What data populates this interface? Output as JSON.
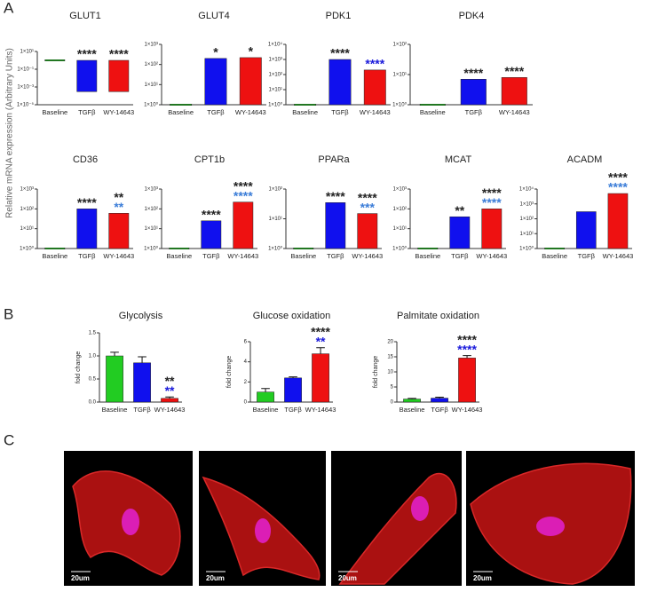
{
  "panel_labels": [
    "A",
    "B",
    "C"
  ],
  "shared_ylabel": "Relative mRNA expression (Arbitrary Units)",
  "chart_data": [
    {
      "type": "bar",
      "title": "GLUT1",
      "log_scale": true,
      "categories": [
        "Baseline",
        "TGFβ",
        "WY-14643"
      ],
      "values": [
        1,
        0.0003,
        0.0003
      ],
      "colors": [
        "#22cc22",
        "#1010ee",
        "#ee1111"
      ],
      "ylim": [
        1e-05,
        10
      ],
      "yticks": [
        {
          "value": 10,
          "label": "1×10¹"
        },
        {
          "value": 0.1,
          "label": "1×10⁻¹"
        },
        {
          "value": 0.001,
          "label": "1×10⁻³"
        },
        {
          "value": 1e-05,
          "label": "1×10⁻⁵"
        }
      ],
      "significance": [
        null,
        [
          {
            "text": "****",
            "color": "#222222"
          }
        ],
        [
          {
            "text": "****",
            "color": "#222222"
          }
        ]
      ]
    },
    {
      "type": "bar",
      "title": "GLUT4",
      "log_scale": true,
      "categories": [
        "Baseline",
        "TGFβ",
        "WY-14643"
      ],
      "values": [
        1,
        200,
        220
      ],
      "colors": [
        "#22cc22",
        "#1010ee",
        "#ee1111"
      ],
      "ylim": [
        1,
        1000
      ],
      "yticks": [
        {
          "value": 1,
          "label": "1×10⁰"
        },
        {
          "value": 10,
          "label": "1×10¹"
        },
        {
          "value": 100,
          "label": "1×10²"
        },
        {
          "value": 1000,
          "label": "1×10³"
        }
      ],
      "significance": [
        null,
        [
          {
            "text": "*",
            "color": "#222222"
          }
        ],
        [
          {
            "text": "*",
            "color": "#222222"
          }
        ]
      ]
    },
    {
      "type": "bar",
      "title": "PDK1",
      "log_scale": true,
      "categories": [
        "Baseline",
        "TGFβ",
        "WY-14643"
      ],
      "values": [
        1,
        1000,
        200
      ],
      "colors": [
        "#22cc22",
        "#1010ee",
        "#ee1111"
      ],
      "ylim": [
        1,
        10000
      ],
      "yticks": [
        {
          "value": 1,
          "label": "1×10⁰"
        },
        {
          "value": 10,
          "label": "1×10¹"
        },
        {
          "value": 100,
          "label": "1×10²"
        },
        {
          "value": 1000,
          "label": "1×10³"
        },
        {
          "value": 10000,
          "label": "1×10⁴"
        }
      ],
      "significance": [
        null,
        [
          {
            "text": "****",
            "color": "#222222"
          }
        ],
        [
          {
            "text": "****",
            "color": "#1a1adb"
          }
        ]
      ]
    },
    {
      "type": "bar",
      "title": "PDK4",
      "log_scale": true,
      "categories": [
        "Baseline",
        "TGFβ",
        "WY-14643"
      ],
      "values": [
        1,
        7,
        8
      ],
      "colors": [
        "#22cc22",
        "#1010ee",
        "#ee1111"
      ],
      "ylim": [
        1,
        100
      ],
      "yticks": [
        {
          "value": 1,
          "label": "1×10⁰"
        },
        {
          "value": 10,
          "label": "1×10¹"
        },
        {
          "value": 100,
          "label": "1×10²"
        }
      ],
      "significance": [
        null,
        [
          {
            "text": "****",
            "color": "#222222"
          }
        ],
        [
          {
            "text": "****",
            "color": "#222222"
          }
        ]
      ]
    },
    {
      "type": "bar",
      "title": "CD36",
      "log_scale": true,
      "categories": [
        "Baseline",
        "TGFβ",
        "WY-14643"
      ],
      "values": [
        1,
        100,
        60
      ],
      "colors": [
        "#22cc22",
        "#1010ee",
        "#ee1111"
      ],
      "ylim": [
        1,
        1000
      ],
      "yticks": [
        {
          "value": 1,
          "label": "1×10⁰"
        },
        {
          "value": 10,
          "label": "1×10¹"
        },
        {
          "value": 100,
          "label": "1×10²"
        },
        {
          "value": 1000,
          "label": "1×10³"
        }
      ],
      "significance": [
        null,
        [
          {
            "text": "****",
            "color": "#222222"
          }
        ],
        [
          {
            "text": "**",
            "color": "#222222"
          },
          {
            "text": "**",
            "color": "#3b7dd8"
          }
        ]
      ]
    },
    {
      "type": "bar",
      "title": "CPT1b",
      "log_scale": true,
      "categories": [
        "Baseline",
        "TGFβ",
        "WY-14643"
      ],
      "values": [
        1,
        25,
        220
      ],
      "colors": [
        "#22cc22",
        "#1010ee",
        "#ee1111"
      ],
      "ylim": [
        1,
        1000
      ],
      "yticks": [
        {
          "value": 1,
          "label": "1×10⁰"
        },
        {
          "value": 10,
          "label": "1×10¹"
        },
        {
          "value": 100,
          "label": "1×10²"
        },
        {
          "value": 1000,
          "label": "1×10³"
        }
      ],
      "significance": [
        null,
        [
          {
            "text": "****",
            "color": "#222222"
          }
        ],
        [
          {
            "text": "****",
            "color": "#222222"
          },
          {
            "text": "****",
            "color": "#3b7dd8"
          }
        ]
      ]
    },
    {
      "type": "bar",
      "title": "PPARa",
      "log_scale": true,
      "categories": [
        "Baseline",
        "TGFβ",
        "WY-14643"
      ],
      "values": [
        1,
        35,
        15
      ],
      "colors": [
        "#22cc22",
        "#1010ee",
        "#ee1111"
      ],
      "ylim": [
        1,
        100
      ],
      "yticks": [
        {
          "value": 1,
          "label": "1×10⁰"
        },
        {
          "value": 10,
          "label": "1×10¹"
        },
        {
          "value": 100,
          "label": "1×10²"
        }
      ],
      "significance": [
        null,
        [
          {
            "text": "****",
            "color": "#222222"
          }
        ],
        [
          {
            "text": "****",
            "color": "#222222"
          },
          {
            "text": "***",
            "color": "#3b7dd8"
          }
        ]
      ]
    },
    {
      "type": "bar",
      "title": "MCAT",
      "log_scale": true,
      "categories": [
        "Baseline",
        "TGFβ",
        "WY-14643"
      ],
      "values": [
        1,
        40,
        100
      ],
      "colors": [
        "#22cc22",
        "#1010ee",
        "#ee1111"
      ],
      "ylim": [
        1,
        1000
      ],
      "yticks": [
        {
          "value": 1,
          "label": "1×10⁰"
        },
        {
          "value": 10,
          "label": "1×10¹"
        },
        {
          "value": 100,
          "label": "1×10²"
        },
        {
          "value": 1000,
          "label": "1×10³"
        }
      ],
      "significance": [
        null,
        [
          {
            "text": "**",
            "color": "#222222"
          }
        ],
        [
          {
            "text": "****",
            "color": "#222222"
          },
          {
            "text": "****",
            "color": "#3b7dd8"
          }
        ]
      ]
    },
    {
      "type": "bar",
      "title": "ACADM",
      "log_scale": true,
      "categories": [
        "Baseline",
        "TGFβ",
        "WY-14643"
      ],
      "values": [
        1,
        300,
        5000
      ],
      "colors": [
        "#22cc22",
        "#1010ee",
        "#ee1111"
      ],
      "ylim": [
        1,
        10000
      ],
      "yticks": [
        {
          "value": 1,
          "label": "1×10⁰"
        },
        {
          "value": 10,
          "label": "1×10¹"
        },
        {
          "value": 100,
          "label": "1×10²"
        },
        {
          "value": 1000,
          "label": "1×10³"
        },
        {
          "value": 10000,
          "label": "1×10⁴"
        }
      ],
      "significance": [
        null,
        null,
        [
          {
            "text": "****",
            "color": "#222222"
          },
          {
            "text": "****",
            "color": "#3b7dd8"
          }
        ]
      ]
    },
    {
      "type": "bar",
      "title": "Glycolysis",
      "ylabel": "fold change",
      "log_scale": false,
      "categories": [
        "Baseline",
        "TGFβ",
        "WY-14643"
      ],
      "values": [
        1.0,
        0.85,
        0.08
      ],
      "errors": [
        0.08,
        0.13,
        0.03
      ],
      "colors": [
        "#22cc22",
        "#1010ee",
        "#ee1111"
      ],
      "ylim": [
        0,
        1.5
      ],
      "yticks": [
        {
          "value": 0,
          "label": "0.0"
        },
        0.5,
        {
          "value": 1,
          "label": "1.0"
        },
        1.5
      ],
      "significance": [
        null,
        null,
        [
          {
            "text": "**",
            "color": "#222222"
          },
          {
            "text": "**",
            "color": "#1a1adb"
          }
        ]
      ]
    },
    {
      "type": "bar",
      "title": "Glucose oxidation",
      "ylabel": "fold change",
      "log_scale": false,
      "categories": [
        "Baseline",
        "TGFβ",
        "WY-14643"
      ],
      "values": [
        1.0,
        2.4,
        4.8
      ],
      "errors": [
        0.35,
        0.1,
        0.6
      ],
      "colors": [
        "#22cc22",
        "#1010ee",
        "#ee1111"
      ],
      "ylim": [
        0,
        6
      ],
      "yticks": [
        0,
        2,
        4,
        6
      ],
      "significance": [
        null,
        null,
        [
          {
            "text": "****",
            "color": "#222222"
          },
          {
            "text": "**",
            "color": "#1a1adb"
          }
        ]
      ]
    },
    {
      "type": "bar",
      "title": "Palmitate oxidation",
      "ylabel": "fold change",
      "log_scale": false,
      "categories": [
        "Baseline",
        "TGFβ",
        "WY-14643"
      ],
      "values": [
        1.0,
        1.3,
        14.6
      ],
      "errors": [
        0.2,
        0.3,
        0.8
      ],
      "colors": [
        "#22cc22",
        "#1010ee",
        "#ee1111"
      ],
      "ylim": [
        0,
        20
      ],
      "yticks": [
        0,
        5,
        10,
        15,
        20
      ],
      "significance": [
        null,
        null,
        [
          {
            "text": "****",
            "color": "#222222"
          },
          {
            "text": "****",
            "color": "#1a1adb"
          }
        ]
      ]
    }
  ],
  "micrographs": [
    {
      "scale_bar": "20um"
    },
    {
      "scale_bar": "20um"
    },
    {
      "scale_bar": "20um"
    },
    {
      "scale_bar": "20um"
    }
  ]
}
